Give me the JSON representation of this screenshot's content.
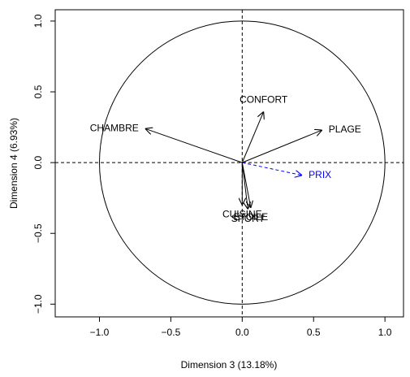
{
  "chart_data": {
    "type": "arrows",
    "x_label": "Dimension 3 (13.18%)",
    "y_label": "Dimension 4 (6.93%)",
    "xlim": [
      -1.31,
      1.13
    ],
    "ylim": [
      -1.09,
      1.08
    ],
    "xticks": [
      {
        "value": -1,
        "label": "−1.0"
      },
      {
        "value": -0.5,
        "label": "−0.5"
      },
      {
        "value": 0,
        "label": "0.0"
      },
      {
        "value": 0.5,
        "label": "0.5"
      },
      {
        "value": 1,
        "label": "1.0"
      }
    ],
    "yticks": [
      {
        "value": -1,
        "label": "−1.0"
      },
      {
        "value": -0.5,
        "label": "−0.5"
      },
      {
        "value": 0,
        "label": "0.0"
      },
      {
        "value": 0.5,
        "label": "0.5"
      },
      {
        "value": 1,
        "label": "1.0"
      }
    ],
    "series": [
      {
        "name": "CONFORT",
        "color": "#000000",
        "x": 0.15,
        "y": 0.36
      },
      {
        "name": "CHAMBRE",
        "color": "#000000",
        "x": -0.68,
        "y": 0.24
      },
      {
        "name": "PLAGE",
        "color": "#000000",
        "x": 0.56,
        "y": 0.23
      },
      {
        "name": "PRIX",
        "color": "#0000ff",
        "dashed": true,
        "x": 0.42,
        "y": -0.09
      },
      {
        "name": "CUISINE",
        "color": "#000000",
        "x": 0.0,
        "y": -0.3
      },
      {
        "name": "ETOILE",
        "color": "#000000",
        "x": 0.06,
        "y": -0.32
      },
      {
        "name": "SPORT",
        "color": "#000000",
        "x": 0.04,
        "y": -0.33
      }
    ]
  }
}
